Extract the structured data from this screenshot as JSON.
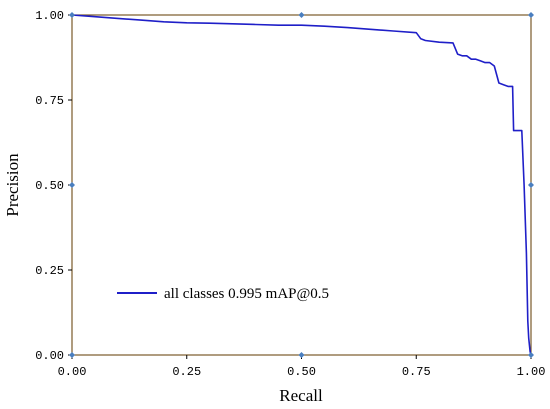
{
  "chart_data": {
    "type": "line",
    "title": "",
    "xlabel": "Recall",
    "ylabel": "Precision",
    "xlim": [
      0,
      1
    ],
    "ylim": [
      0,
      1
    ],
    "x_ticks": [
      "0.00",
      "0.25",
      "0.50",
      "0.75",
      "1.00"
    ],
    "y_ticks": [
      "0.00",
      "0.25",
      "0.50",
      "0.75",
      "1.00"
    ],
    "grid": false,
    "legend_position": "lower-left",
    "colors": {
      "series": "#1f1fc8",
      "frame": "#7a5a2a",
      "marker": "#4a7fc0"
    },
    "series": [
      {
        "name": "all classes 0.995 mAP@0.5",
        "x": [
          0.0,
          0.05,
          0.1,
          0.15,
          0.2,
          0.25,
          0.3,
          0.35,
          0.4,
          0.45,
          0.5,
          0.55,
          0.6,
          0.65,
          0.7,
          0.75,
          0.76,
          0.77,
          0.8,
          0.83,
          0.84,
          0.85,
          0.86,
          0.87,
          0.88,
          0.89,
          0.9,
          0.91,
          0.92,
          0.93,
          0.94,
          0.95,
          0.96,
          0.962,
          0.97,
          0.98,
          0.985,
          0.99,
          0.993,
          0.995,
          0.998,
          1.0
        ],
        "y": [
          1.0,
          0.995,
          0.99,
          0.985,
          0.98,
          0.977,
          0.976,
          0.974,
          0.972,
          0.97,
          0.97,
          0.967,
          0.963,
          0.958,
          0.953,
          0.948,
          0.93,
          0.925,
          0.92,
          0.918,
          0.885,
          0.88,
          0.88,
          0.87,
          0.87,
          0.865,
          0.86,
          0.86,
          0.85,
          0.8,
          0.795,
          0.79,
          0.79,
          0.66,
          0.66,
          0.66,
          0.5,
          0.3,
          0.1,
          0.05,
          0.01,
          0.0
        ]
      }
    ],
    "markers": [
      {
        "x": 0.0,
        "y": 1.0
      },
      {
        "x": 0.5,
        "y": 1.0
      },
      {
        "x": 1.0,
        "y": 1.0
      },
      {
        "x": 0.0,
        "y": 0.5
      },
      {
        "x": 1.0,
        "y": 0.5
      },
      {
        "x": 0.0,
        "y": 0.0
      },
      {
        "x": 0.5,
        "y": 0.0
      },
      {
        "x": 1.0,
        "y": 0.0
      }
    ]
  }
}
